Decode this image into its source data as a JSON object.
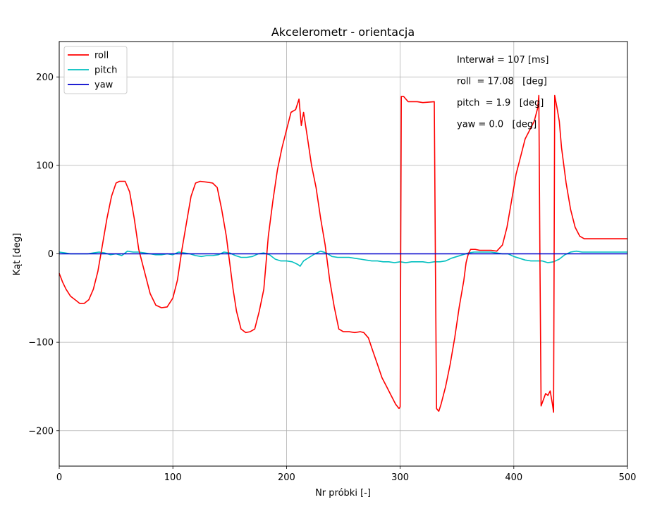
{
  "chart_data": {
    "type": "line",
    "title": "Akcelerometr - orientacja",
    "xlabel": "Nr próbki [-]",
    "ylabel": "Kąt [deg]",
    "xlim": [
      0,
      500
    ],
    "ylim": [
      -240,
      240
    ],
    "xticks": [
      0,
      100,
      200,
      300,
      400,
      500
    ],
    "yticks": [
      -200,
      -100,
      0,
      100,
      200
    ],
    "xtick_labels": [
      "0",
      "100",
      "200",
      "300",
      "400",
      "500"
    ],
    "ytick_labels": [
      "−200",
      "−100",
      "0",
      "100",
      "200"
    ],
    "grid": true,
    "legend_position": "top-left",
    "annotations": [
      "Interwał = 107 [ms]",
      "roll  = 17.08   [deg]",
      "pitch  = 1.9   [deg]",
      "yaw = 0.0   [deg]"
    ],
    "series": [
      {
        "name": "roll",
        "color": "#ff0000",
        "points": [
          [
            0,
            -22
          ],
          [
            3,
            -32
          ],
          [
            6,
            -40
          ],
          [
            10,
            -48
          ],
          [
            14,
            -52
          ],
          [
            18,
            -56
          ],
          [
            22,
            -56
          ],
          [
            26,
            -52
          ],
          [
            30,
            -40
          ],
          [
            34,
            -20
          ],
          [
            38,
            10
          ],
          [
            42,
            40
          ],
          [
            46,
            65
          ],
          [
            50,
            80
          ],
          [
            53,
            82
          ],
          [
            58,
            82
          ],
          [
            62,
            70
          ],
          [
            66,
            40
          ],
          [
            70,
            5
          ],
          [
            75,
            -20
          ],
          [
            80,
            -45
          ],
          [
            85,
            -58
          ],
          [
            90,
            -61
          ],
          [
            95,
            -60
          ],
          [
            100,
            -50
          ],
          [
            104,
            -30
          ],
          [
            108,
            5
          ],
          [
            112,
            35
          ],
          [
            116,
            65
          ],
          [
            120,
            80
          ],
          [
            124,
            82
          ],
          [
            130,
            81
          ],
          [
            135,
            80
          ],
          [
            139,
            75
          ],
          [
            143,
            50
          ],
          [
            147,
            20
          ],
          [
            150,
            -10
          ],
          [
            153,
            -40
          ],
          [
            156,
            -65
          ],
          [
            160,
            -85
          ],
          [
            164,
            -89
          ],
          [
            168,
            -88
          ],
          [
            172,
            -85
          ],
          [
            176,
            -65
          ],
          [
            180,
            -40
          ],
          [
            184,
            20
          ],
          [
            188,
            60
          ],
          [
            192,
            95
          ],
          [
            196,
            120
          ],
          [
            200,
            140
          ],
          [
            204,
            160
          ],
          [
            208,
            163
          ],
          [
            211,
            175
          ],
          [
            213,
            145
          ],
          [
            215,
            160
          ],
          [
            218,
            135
          ],
          [
            222,
            100
          ],
          [
            226,
            75
          ],
          [
            230,
            40
          ],
          [
            234,
            10
          ],
          [
            238,
            -30
          ],
          [
            242,
            -60
          ],
          [
            246,
            -85
          ],
          [
            250,
            -88
          ],
          [
            255,
            -88
          ],
          [
            260,
            -89
          ],
          [
            265,
            -88
          ],
          [
            268,
            -89
          ],
          [
            272,
            -95
          ],
          [
            276,
            -110
          ],
          [
            280,
            -125
          ],
          [
            284,
            -140
          ],
          [
            288,
            -150
          ],
          [
            292,
            -160
          ],
          [
            296,
            -170
          ],
          [
            299,
            -175
          ],
          [
            300,
            -173
          ],
          [
            301,
            178
          ],
          [
            303,
            178
          ],
          [
            307,
            172
          ],
          [
            315,
            172
          ],
          [
            320,
            171
          ],
          [
            330,
            172
          ],
          [
            331,
            -10
          ],
          [
            332,
            -175
          ],
          [
            334,
            -178
          ],
          [
            336,
            -170
          ],
          [
            340,
            -150
          ],
          [
            344,
            -125
          ],
          [
            348,
            -95
          ],
          [
            352,
            -60
          ],
          [
            356,
            -30
          ],
          [
            358,
            -10
          ],
          [
            360,
            0
          ],
          [
            362,
            5
          ],
          [
            366,
            5
          ],
          [
            370,
            4
          ],
          [
            380,
            4
          ],
          [
            385,
            3
          ],
          [
            390,
            10
          ],
          [
            394,
            30
          ],
          [
            398,
            60
          ],
          [
            402,
            90
          ],
          [
            406,
            110
          ],
          [
            410,
            130
          ],
          [
            414,
            140
          ],
          [
            418,
            150
          ],
          [
            421,
            165
          ],
          [
            422,
            179
          ],
          [
            423,
            -10
          ],
          [
            424,
            -172
          ],
          [
            426,
            -165
          ],
          [
            428,
            -158
          ],
          [
            430,
            -160
          ],
          [
            432,
            -155
          ],
          [
            434,
            -170
          ],
          [
            435,
            -179
          ],
          [
            436,
            179
          ],
          [
            438,
            165
          ],
          [
            440,
            150
          ],
          [
            442,
            120
          ],
          [
            446,
            80
          ],
          [
            450,
            50
          ],
          [
            454,
            30
          ],
          [
            458,
            20
          ],
          [
            462,
            17
          ],
          [
            470,
            17
          ],
          [
            480,
            17
          ],
          [
            490,
            17
          ],
          [
            500,
            17
          ]
        ]
      },
      {
        "name": "pitch",
        "color": "#00bfbf",
        "points": [
          [
            0,
            2
          ],
          [
            5,
            1
          ],
          [
            10,
            0
          ],
          [
            15,
            0
          ],
          [
            20,
            0
          ],
          [
            25,
            0
          ],
          [
            30,
            1
          ],
          [
            35,
            2
          ],
          [
            40,
            1
          ],
          [
            45,
            -1
          ],
          [
            50,
            0
          ],
          [
            55,
            -2
          ],
          [
            60,
            3
          ],
          [
            65,
            2
          ],
          [
            70,
            2
          ],
          [
            75,
            1
          ],
          [
            80,
            0
          ],
          [
            85,
            -1
          ],
          [
            90,
            -1
          ],
          [
            95,
            0
          ],
          [
            100,
            -1
          ],
          [
            105,
            2
          ],
          [
            110,
            1
          ],
          [
            115,
            0
          ],
          [
            120,
            -2
          ],
          [
            125,
            -3
          ],
          [
            130,
            -2
          ],
          [
            135,
            -2
          ],
          [
            140,
            -1
          ],
          [
            145,
            2
          ],
          [
            150,
            1
          ],
          [
            155,
            -2
          ],
          [
            160,
            -4
          ],
          [
            165,
            -4
          ],
          [
            170,
            -3
          ],
          [
            175,
            0
          ],
          [
            180,
            1
          ],
          [
            185,
            -1
          ],
          [
            190,
            -6
          ],
          [
            195,
            -8
          ],
          [
            200,
            -8
          ],
          [
            205,
            -9
          ],
          [
            210,
            -12
          ],
          [
            212,
            -14
          ],
          [
            215,
            -8
          ],
          [
            220,
            -4
          ],
          [
            225,
            0
          ],
          [
            230,
            3
          ],
          [
            235,
            1
          ],
          [
            240,
            -3
          ],
          [
            245,
            -4
          ],
          [
            250,
            -4
          ],
          [
            255,
            -4
          ],
          [
            260,
            -5
          ],
          [
            265,
            -6
          ],
          [
            270,
            -7
          ],
          [
            275,
            -8
          ],
          [
            280,
            -8
          ],
          [
            285,
            -9
          ],
          [
            290,
            -9
          ],
          [
            295,
            -10
          ],
          [
            300,
            -9
          ],
          [
            305,
            -10
          ],
          [
            310,
            -9
          ],
          [
            315,
            -9
          ],
          [
            320,
            -9
          ],
          [
            325,
            -10
          ],
          [
            330,
            -9
          ],
          [
            335,
            -9
          ],
          [
            340,
            -8
          ],
          [
            345,
            -5
          ],
          [
            350,
            -3
          ],
          [
            355,
            -1
          ],
          [
            360,
            1
          ],
          [
            365,
            2
          ],
          [
            370,
            2
          ],
          [
            375,
            2
          ],
          [
            380,
            2
          ],
          [
            385,
            1
          ],
          [
            390,
            0
          ],
          [
            395,
            0
          ],
          [
            400,
            -3
          ],
          [
            405,
            -5
          ],
          [
            410,
            -7
          ],
          [
            415,
            -8
          ],
          [
            420,
            -8
          ],
          [
            425,
            -8
          ],
          [
            430,
            -10
          ],
          [
            435,
            -9
          ],
          [
            440,
            -6
          ],
          [
            445,
            -1
          ],
          [
            450,
            2
          ],
          [
            455,
            3
          ],
          [
            460,
            2
          ],
          [
            465,
            2
          ],
          [
            470,
            2
          ],
          [
            475,
            2
          ],
          [
            480,
            2
          ],
          [
            485,
            2
          ],
          [
            490,
            2
          ],
          [
            495,
            2
          ],
          [
            500,
            2
          ]
        ]
      },
      {
        "name": "yaw",
        "color": "#0000cc",
        "points": [
          [
            0,
            0
          ],
          [
            500,
            0
          ]
        ]
      }
    ]
  }
}
